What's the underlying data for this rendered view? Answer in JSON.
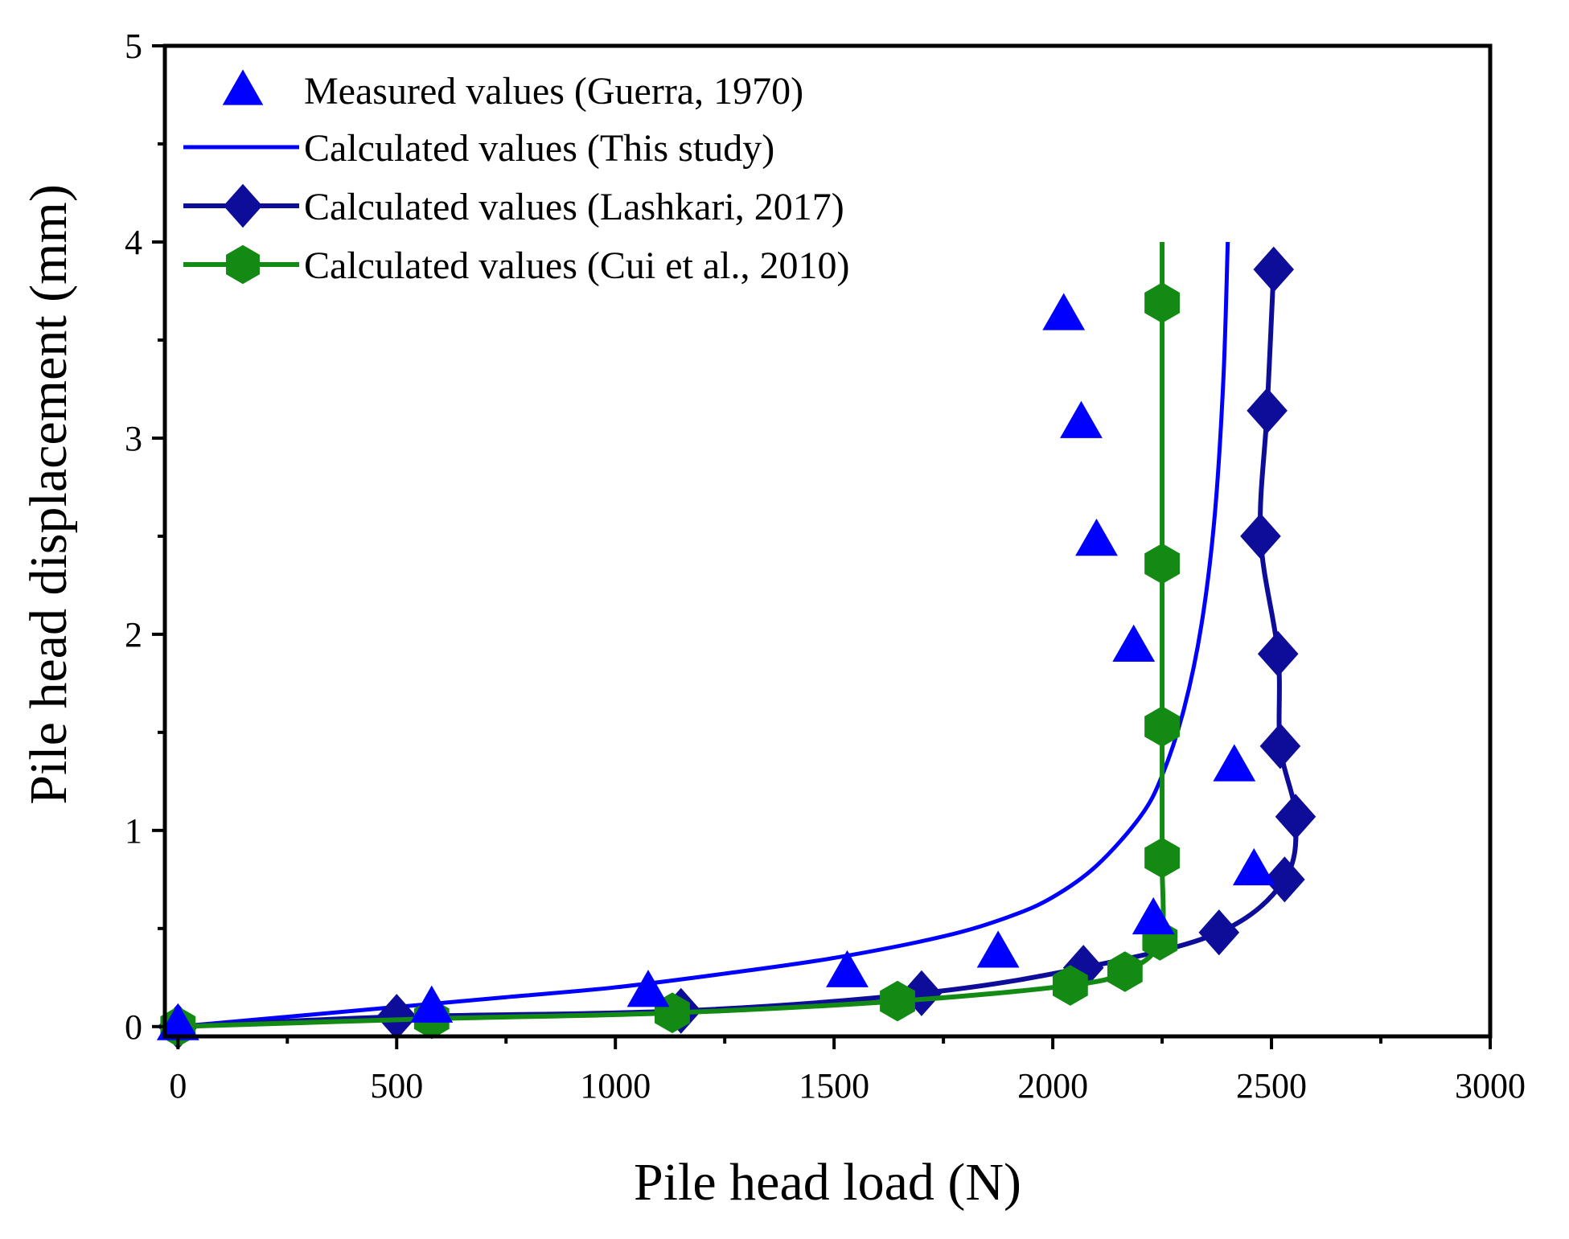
{
  "chart_data": {
    "type": "line",
    "title": "",
    "xlabel": "Pile head load (N)",
    "ylabel": "Pile head displacement (mm)",
    "xlim": [
      -30,
      3000
    ],
    "ylim": [
      -0.05,
      5
    ],
    "x_ticks": [
      0,
      500,
      1000,
      1500,
      2000,
      2500,
      3000
    ],
    "x_tick_labels": [
      "0",
      "500",
      "1000",
      "1500",
      "2000",
      "2500",
      "3000"
    ],
    "y_ticks": [
      0,
      1,
      2,
      3,
      4,
      5
    ],
    "y_tick_labels": [
      "0",
      "1",
      "2",
      "3",
      "4",
      "5"
    ],
    "grid": false,
    "legend_position": "top-left",
    "series": [
      {
        "name": "Measured values (Guerra, 1970)",
        "style": "markers",
        "marker": "triangle",
        "color": "#0000FF",
        "x": [
          0,
          580,
          1075,
          1530,
          1875,
          2025,
          2065,
          2100,
          2185,
          2230,
          2415,
          2460
        ],
        "y": [
          0.01,
          0.1,
          0.18,
          0.28,
          0.38,
          3.63,
          3.08,
          2.48,
          1.94,
          0.55,
          1.33,
          0.8
        ]
      },
      {
        "name": "Calculated values (This study)",
        "style": "line",
        "color": "#0000FF",
        "x": [
          0,
          250,
          500,
          750,
          1000,
          1250,
          1500,
          1750,
          1900,
          2000,
          2100,
          2200,
          2250,
          2300,
          2340,
          2370,
          2390,
          2400
        ],
        "y": [
          0,
          0.05,
          0.1,
          0.15,
          0.2,
          0.27,
          0.35,
          0.46,
          0.56,
          0.66,
          0.82,
          1.07,
          1.28,
          1.62,
          2.05,
          2.6,
          3.3,
          4.0
        ]
      },
      {
        "name": "Calculated values (Lashkari, 2017)",
        "style": "line+markers",
        "marker": "diamond",
        "color": "#0D0D9A",
        "x": [
          0,
          500,
          1150,
          1700,
          2070,
          2380,
          2530,
          2555,
          2520,
          2515,
          2475,
          2490,
          2505
        ],
        "y": [
          0,
          0.05,
          0.08,
          0.17,
          0.3,
          0.48,
          0.75,
          1.07,
          1.43,
          1.9,
          2.5,
          3.14,
          3.86
        ]
      },
      {
        "name": "Calculated values (Cui et al., 2010)",
        "style": "line+markers",
        "marker": "hexagon",
        "color": "#138A13",
        "x": [
          0,
          580,
          1130,
          1645,
          2040,
          2165,
          2245,
          2250,
          2250,
          2250,
          2250
        ],
        "y": [
          0,
          0.04,
          0.07,
          0.13,
          0.21,
          0.28,
          0.44,
          0.86,
          1.53,
          2.36,
          3.69
        ]
      }
    ],
    "curve_extension": {
      "cui_vertical_line_top": 4.0
    }
  }
}
